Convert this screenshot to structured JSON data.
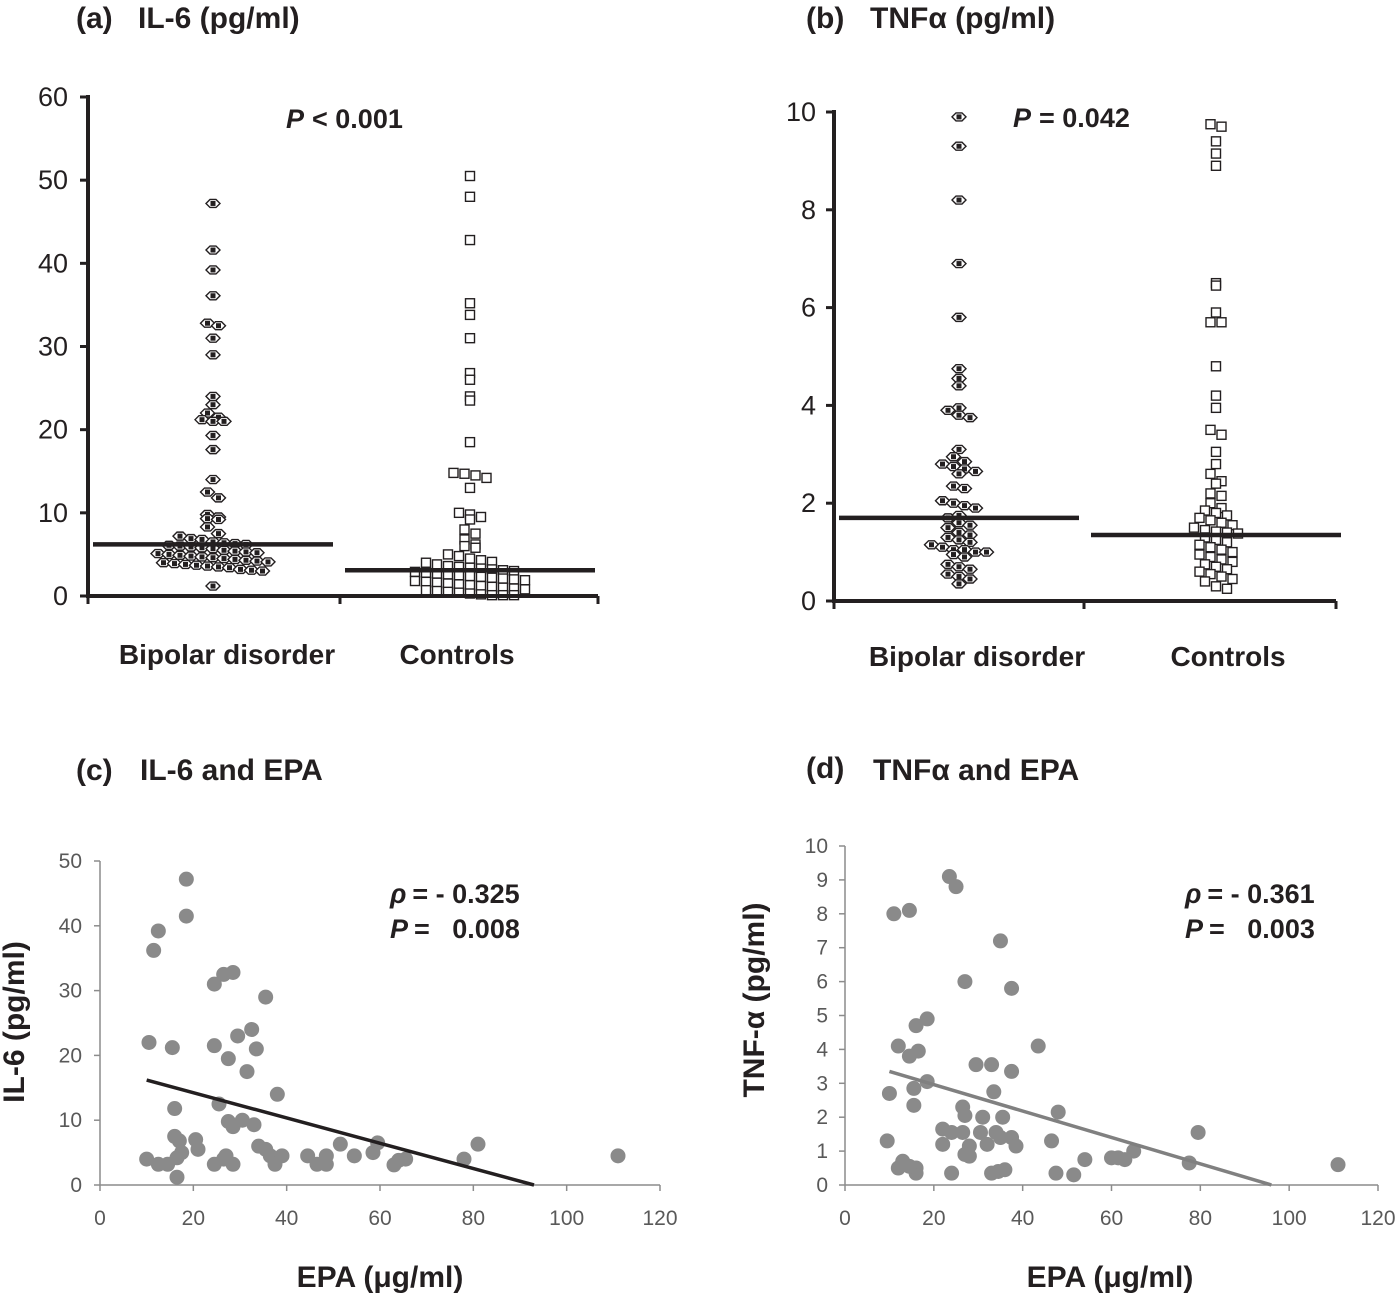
{
  "chart_data": [
    {
      "panel": "a",
      "type": "scatter",
      "subtype": "dot-plot",
      "label": "(a)",
      "title": "IL-6 (pg/ml)",
      "categories": [
        "Bipolar disorder",
        "Controls"
      ],
      "ylim": [
        0,
        60
      ],
      "yticks": [
        0,
        10,
        20,
        30,
        40,
        50,
        60
      ],
      "annotation": {
        "p_prefix": "P",
        "p_value": "< 0.001"
      },
      "series": [
        {
          "name": "Bipolar disorder",
          "marker": "diamond-filled",
          "median": 6.2,
          "values": [
            47.2,
            41.6,
            39.2,
            36.1,
            32.8,
            32.5,
            31,
            29,
            24,
            23,
            22,
            21.5,
            21.2,
            21,
            21,
            19.3,
            17.6,
            14,
            12.5,
            11.8,
            9.8,
            9.5,
            9.3,
            9.2,
            8.3,
            7.5,
            7.2,
            6.9,
            6.8,
            6.5,
            6.4,
            6.3,
            6.2,
            6.1,
            6.0,
            5.9,
            5.8,
            5.7,
            5.5,
            5.4,
            5.3,
            5.2,
            5.1,
            5.0,
            4.9,
            4.8,
            4.7,
            4.6,
            4.5,
            4.4,
            4.3,
            4.2,
            4.1,
            4.0,
            3.9,
            3.8,
            3.7,
            3.6,
            3.5,
            3.4,
            3.2,
            3.1,
            3.0,
            1.2
          ]
        },
        {
          "name": "Controls",
          "marker": "square-open",
          "median": 3.1,
          "values": [
            50.5,
            48,
            42.8,
            35.2,
            33.8,
            31,
            26.8,
            26,
            24,
            23.5,
            18.5,
            14.8,
            14.7,
            14.5,
            14.2,
            13,
            10,
            9.8,
            9.5,
            9.2,
            8,
            7.5,
            6.8,
            6.2,
            6,
            5.8,
            5,
            4.8,
            4.5,
            4.3,
            4.1,
            4,
            3.8,
            3.6,
            3.5,
            3.4,
            3.3,
            3.2,
            3.1,
            3.0,
            2.9,
            2.8,
            2.7,
            2.6,
            2.5,
            2.4,
            2.3,
            2.2,
            2.1,
            2.0,
            1.9,
            1.8,
            1.7,
            1.6,
            1.5,
            1.4,
            1.3,
            1.2,
            1.1,
            1.0,
            0.9,
            0.8,
            0.7,
            0.6,
            0.5,
            0.4,
            0.3,
            0.2,
            0.1,
            0.1,
            0.1
          ]
        }
      ]
    },
    {
      "panel": "b",
      "type": "scatter",
      "subtype": "dot-plot",
      "label": "(b)",
      "title": "TNFα (pg/ml)",
      "categories": [
        "Bipolar disorder",
        "Controls"
      ],
      "ylim": [
        0,
        10
      ],
      "yticks": [
        0,
        2,
        4,
        6,
        8,
        10
      ],
      "annotation": {
        "p_prefix": "P",
        "p_value": "= 0.042"
      },
      "series": [
        {
          "name": "Bipolar disorder",
          "marker": "diamond-filled",
          "median": 1.7,
          "values": [
            9.9,
            9.3,
            8.2,
            6.9,
            5.8,
            4.75,
            4.55,
            4.4,
            3.95,
            3.9,
            3.8,
            3.75,
            3.1,
            2.95,
            2.85,
            2.8,
            2.75,
            2.7,
            2.65,
            2.6,
            2.35,
            2.3,
            2.05,
            2.0,
            1.95,
            1.9,
            1.75,
            1.7,
            1.6,
            1.55,
            1.5,
            1.4,
            1.35,
            1.3,
            1.25,
            1.2,
            1.15,
            1.1,
            1.05,
            1.05,
            1.0,
            1.0,
            0.95,
            0.9,
            0.75,
            0.7,
            0.65,
            0.55,
            0.5,
            0.45,
            0.35
          ]
        },
        {
          "name": "Controls",
          "marker": "square-open",
          "median": 1.35,
          "values": [
            9.75,
            9.7,
            9.4,
            9.15,
            8.9,
            6.5,
            6.45,
            5.9,
            5.7,
            5.7,
            4.8,
            4.2,
            3.95,
            3.5,
            3.4,
            3.05,
            2.8,
            2.6,
            2.45,
            2.4,
            2.2,
            2.15,
            2.0,
            1.9,
            1.85,
            1.8,
            1.75,
            1.7,
            1.65,
            1.6,
            1.55,
            1.5,
            1.45,
            1.42,
            1.4,
            1.38,
            1.3,
            1.25,
            1.2,
            1.15,
            1.1,
            1.05,
            1.0,
            0.95,
            0.9,
            0.85,
            0.8,
            0.75,
            0.7,
            0.65,
            0.6,
            0.55,
            0.5,
            0.45,
            0.4,
            0.3,
            0.25
          ]
        }
      ]
    },
    {
      "panel": "c",
      "type": "scatter",
      "label": "(c)",
      "title": "IL-6 and EPA",
      "xlabel": "EPA (μg/ml)",
      "ylabel": "IL-6 (pg/ml)",
      "xlim": [
        0,
        120
      ],
      "ylim": [
        0,
        50
      ],
      "xticks": [
        0,
        20,
        40,
        60,
        80,
        100,
        120
      ],
      "yticks": [
        0,
        10,
        20,
        30,
        40,
        50
      ],
      "annotation": {
        "rho_label": "ρ",
        "rho_value": "= - 0.325",
        "p_label": "P",
        "p_value": "=   0.008"
      },
      "trendline": {
        "x": [
          10,
          93
        ],
        "y": [
          16.2,
          0
        ]
      },
      "points": [
        [
          18.5,
          47.2
        ],
        [
          18.5,
          41.5
        ],
        [
          12.5,
          39.2
        ],
        [
          11.5,
          36.2
        ],
        [
          28.5,
          32.8
        ],
        [
          26.5,
          32.5
        ],
        [
          24.5,
          31
        ],
        [
          35.5,
          29
        ],
        [
          32.5,
          24
        ],
        [
          29.5,
          23
        ],
        [
          10.5,
          22
        ],
        [
          15.5,
          21.2
        ],
        [
          24.5,
          21.5
        ],
        [
          33.5,
          21
        ],
        [
          27.5,
          19.5
        ],
        [
          31.5,
          17.5
        ],
        [
          38,
          14
        ],
        [
          25.5,
          12.5
        ],
        [
          16,
          11.8
        ],
        [
          30.5,
          10
        ],
        [
          27.5,
          9.8
        ],
        [
          28.5,
          9
        ],
        [
          33,
          9.3
        ],
        [
          16,
          7.5
        ],
        [
          20.5,
          7
        ],
        [
          17,
          6.8
        ],
        [
          59.5,
          6.5
        ],
        [
          51.5,
          6.3
        ],
        [
          34,
          6
        ],
        [
          81,
          6.3
        ],
        [
          21,
          5.5
        ],
        [
          35.5,
          5.5
        ],
        [
          17.5,
          5
        ],
        [
          58.5,
          5
        ],
        [
          27,
          4.5
        ],
        [
          36.5,
          4.5
        ],
        [
          39,
          4.5
        ],
        [
          44.5,
          4.5
        ],
        [
          48.5,
          4.5
        ],
        [
          54.5,
          4.5
        ],
        [
          16.5,
          4.2
        ],
        [
          26.5,
          4
        ],
        [
          10,
          4
        ],
        [
          65.5,
          4
        ],
        [
          78,
          4
        ],
        [
          64,
          3.8
        ],
        [
          111,
          4.5
        ],
        [
          28.5,
          3.2
        ],
        [
          24.5,
          3.2
        ],
        [
          12.5,
          3.2
        ],
        [
          14.5,
          3.2
        ],
        [
          37.5,
          3.2
        ],
        [
          46.5,
          3.2
        ],
        [
          48.5,
          3.2
        ],
        [
          63,
          3.1
        ],
        [
          16.5,
          1.2
        ]
      ]
    },
    {
      "panel": "d",
      "type": "scatter",
      "label": "(d)",
      "title": "TNFα and EPA",
      "xlabel": "EPA (μg/ml)",
      "ylabel": "TNF-α (pg/ml)",
      "xlim": [
        0,
        120
      ],
      "ylim": [
        0,
        10
      ],
      "xticks": [
        0,
        20,
        40,
        60,
        80,
        100,
        120
      ],
      "yticks": [
        0,
        1,
        2,
        3,
        4,
        5,
        6,
        7,
        8,
        9,
        10
      ],
      "annotation": {
        "rho_label": "ρ",
        "rho_value": "= - 0.361",
        "p_label": "P",
        "p_value": "=   0.003"
      },
      "trendline": {
        "x": [
          10,
          96
        ],
        "y": [
          3.35,
          0
        ]
      },
      "points": [
        [
          23.5,
          9.1
        ],
        [
          25,
          8.8
        ],
        [
          11,
          8
        ],
        [
          14.5,
          8.1
        ],
        [
          35,
          7.2
        ],
        [
          27,
          6
        ],
        [
          37.5,
          5.8
        ],
        [
          18.5,
          4.9
        ],
        [
          16,
          4.7
        ],
        [
          12,
          4.1
        ],
        [
          16.5,
          3.95
        ],
        [
          14.5,
          3.8
        ],
        [
          43.5,
          4.1
        ],
        [
          29.5,
          3.55
        ],
        [
          33,
          3.55
        ],
        [
          37.5,
          3.35
        ],
        [
          18.5,
          3.05
        ],
        [
          15.5,
          2.85
        ],
        [
          10,
          2.7
        ],
        [
          33.5,
          2.75
        ],
        [
          15.5,
          2.35
        ],
        [
          26.5,
          2.3
        ],
        [
          35.5,
          2
        ],
        [
          31,
          2
        ],
        [
          48,
          2.15
        ],
        [
          27,
          2.05
        ],
        [
          22,
          1.65
        ],
        [
          26.5,
          1.55
        ],
        [
          30.5,
          1.55
        ],
        [
          34,
          1.55
        ],
        [
          24,
          1.55
        ],
        [
          37.5,
          1.4
        ],
        [
          35,
          1.4
        ],
        [
          46.5,
          1.3
        ],
        [
          9.5,
          1.3
        ],
        [
          22,
          1.2
        ],
        [
          32,
          1.2
        ],
        [
          28,
          1.15
        ],
        [
          38.5,
          1.15
        ],
        [
          79.5,
          1.55
        ],
        [
          65,
          1
        ],
        [
          60,
          0.8
        ],
        [
          61.5,
          0.8
        ],
        [
          54,
          0.75
        ],
        [
          63,
          0.75
        ],
        [
          28,
          0.85
        ],
        [
          27,
          0.9
        ],
        [
          77.5,
          0.65
        ],
        [
          111,
          0.6
        ],
        [
          16,
          0.5
        ],
        [
          13,
          0.7
        ],
        [
          12,
          0.5
        ],
        [
          16,
          0.35
        ],
        [
          24,
          0.35
        ],
        [
          33,
          0.35
        ],
        [
          34.5,
          0.4
        ],
        [
          36,
          0.45
        ],
        [
          47.5,
          0.35
        ],
        [
          51.5,
          0.3
        ],
        [
          14.5,
          0.55
        ]
      ]
    }
  ]
}
